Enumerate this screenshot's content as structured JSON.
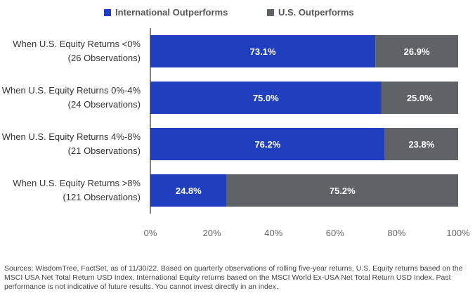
{
  "chart_data": {
    "type": "bar",
    "orientation": "horizontal",
    "stacked": true,
    "categories": [
      [
        "When U.S. Equity Returns <0%",
        "(26 Observations)"
      ],
      [
        "When U.S. Equity Returns 0%-4%",
        "(24 Observations)"
      ],
      [
        "When U.S. Equity Returns 4%-8%",
        "(21 Observations)"
      ],
      [
        "When U.S. Equity Returns >8%",
        "(121 Observations)"
      ]
    ],
    "series": [
      {
        "name": "International Outperforms",
        "color": "#1f3fbf",
        "values": [
          73.1,
          75.0,
          76.2,
          24.8
        ],
        "labels": [
          "73.1%",
          "75.0%",
          "76.2%",
          "24.8%"
        ]
      },
      {
        "name": "U.S. Outperforms",
        "color": "#5f6368",
        "values": [
          26.9,
          25.0,
          23.8,
          75.2
        ],
        "labels": [
          "26.9%",
          "25.0%",
          "23.8%",
          "75.2%"
        ]
      }
    ],
    "xlim": [
      0,
      100
    ],
    "x_ticks": [
      "0%",
      "20%",
      "40%",
      "60%",
      "80%",
      "100%"
    ],
    "grid": false,
    "legend_position": "top"
  },
  "footnote": "Sources: WisdomTree, FactSet, as of 11/30/22. Based on quarterly observations of rolling five-year returns. U.S. Equity returns based on the MSCI USA Net Total Return USD Index. International Equity returns based on the MSCI World Ex-USA Net Total Return USD Index. Past performance is not indicative of future results. You cannot invest directly in an index."
}
